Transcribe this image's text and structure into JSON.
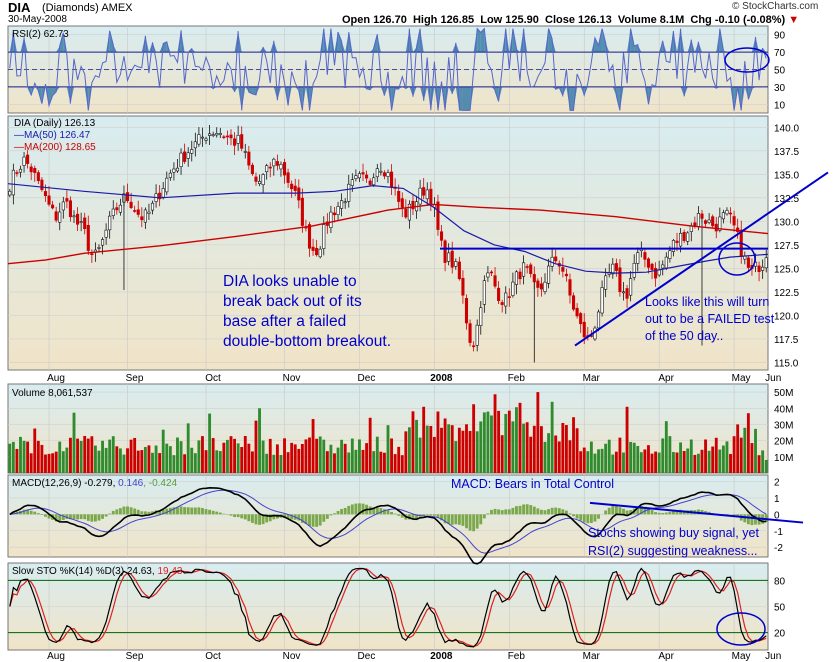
{
  "header": {
    "symbol": "DIA",
    "name": "(Diamonds)",
    "exchange": "AMEX",
    "date": "30-May-2008",
    "open": "Open 126.70",
    "high": "High 126.85",
    "low": "Low 125.90",
    "close": "Close 126.13",
    "volume": "Volume 8.1M",
    "chg": "Chg -0.10 (-0.08%)",
    "chg_arrow": "▼",
    "watermark": "© StockCharts.com"
  },
  "colors": {
    "up": "#2e8b2e",
    "down": "#cc0000",
    "ma50": "#1a1aaa",
    "ma200": "#cc0000",
    "annotation": "#0000cc",
    "bg_top": "#d8ecf0",
    "bg_bottom": "#f0e4c8"
  },
  "chart_data": [
    {
      "type": "line",
      "panel": "rsi",
      "title": "RSI(2) 62.73",
      "y_ticks": [
        90,
        70,
        50,
        30,
        10
      ],
      "levels": [
        70,
        30
      ],
      "ylim": [
        0,
        100
      ]
    },
    {
      "type": "candlestick",
      "panel": "price",
      "title": "DIA (Daily) 126.13",
      "legend": [
        {
          "name": "MA(50) 126.47",
          "color": "#1a1aaa"
        },
        {
          "name": "MA(200) 128.65",
          "color": "#cc0000"
        }
      ],
      "y_ticks": [
        140.0,
        137.5,
        135.0,
        132.5,
        130.0,
        127.5,
        125.0,
        122.5,
        120.0,
        117.5,
        115.0
      ],
      "ylim": [
        114.2,
        141.2
      ],
      "x_ticks": [
        "Aug",
        "Sep",
        "Oct",
        "Nov",
        "Dec",
        "2008",
        "Feb",
        "Mar",
        "Apr",
        "May",
        "Jun"
      ],
      "close_path": [
        134.0,
        135.0,
        135.8,
        136.5,
        136.0,
        135.2,
        134.0,
        133.2,
        132.0,
        131.0,
        130.5,
        131.5,
        132.0,
        131.2,
        130.0,
        129.5,
        128.8,
        127.2,
        126.0,
        126.8,
        128.0,
        129.5,
        130.5,
        131.5,
        132.2,
        132.6,
        132.0,
        131.2,
        130.5,
        130.5,
        131.0,
        132.0,
        133.0,
        134.0,
        134.8,
        135.6,
        136.2,
        136.8,
        137.4,
        137.9,
        138.3,
        138.8,
        139.3,
        139.5,
        139.6,
        139.5,
        139.2,
        138.8,
        138.5,
        138.5,
        137.5,
        136.0,
        134.8,
        134.0,
        134.5,
        135.2,
        136.0,
        136.5,
        136.0,
        135.0,
        134.0,
        133.0,
        131.5,
        129.5,
        128.0,
        127.0,
        127.0,
        128.5,
        130.0,
        131.0,
        131.5,
        132.0,
        132.8,
        133.6,
        134.2,
        134.5,
        134.3,
        134.0,
        135.5,
        136.2,
        135.8,
        135.0,
        133.8,
        132.5,
        131.2,
        130.8,
        131.5,
        132.2,
        133.0,
        133.6,
        133.0,
        131.0,
        128.0,
        126.5,
        126.0,
        125.5,
        124.5,
        122.0,
        119.0,
        116.5,
        118.5,
        122.0,
        124.0,
        124.5,
        123.0,
        122.0,
        121.5,
        122.5,
        123.5,
        124.5,
        125.0,
        124.5,
        123.0,
        122.5,
        123.0,
        124.5,
        125.5,
        126.0,
        125.5,
        124.0,
        122.0,
        120.5,
        119.0,
        118.0,
        117.2,
        118.5,
        120.5,
        122.5,
        124.0,
        125.0,
        124.0,
        122.5,
        122.0,
        124.0,
        126.0,
        126.5,
        126.0,
        125.5,
        124.5,
        124.5,
        125.5,
        126.5,
        127.5,
        128.0,
        128.5,
        129.0,
        129.5,
        130.2,
        130.8,
        130.2,
        129.8,
        129.5,
        130.0,
        130.5,
        130.5,
        129.5,
        128.0,
        126.5,
        125.0,
        124.6,
        125.2,
        125.6,
        126.1
      ],
      "ma50_path": [
        [
          0,
          134.0
        ],
        [
          0.1,
          133.2
        ],
        [
          0.2,
          132.5
        ],
        [
          0.3,
          133.0
        ],
        [
          0.38,
          133.0
        ],
        [
          0.43,
          133.2
        ],
        [
          0.48,
          133.8
        ],
        [
          0.52,
          133.5
        ],
        [
          0.56,
          131.5
        ],
        [
          0.6,
          129.0
        ],
        [
          0.64,
          127.5
        ],
        [
          0.68,
          126.8
        ],
        [
          0.72,
          125.5
        ],
        [
          0.76,
          124.7
        ],
        [
          0.8,
          124.5
        ],
        [
          0.84,
          124.6
        ],
        [
          0.88,
          125.2
        ],
        [
          0.92,
          125.8
        ],
        [
          0.95,
          126.2
        ],
        [
          1.0,
          126.5
        ]
      ],
      "ma200_path": [
        [
          0,
          125.5
        ],
        [
          0.05,
          125.9
        ],
        [
          0.1,
          126.6
        ],
        [
          0.2,
          127.4
        ],
        [
          0.3,
          128.4
        ],
        [
          0.4,
          129.5
        ],
        [
          0.5,
          131.2
        ],
        [
          0.56,
          131.8
        ],
        [
          0.62,
          131.5
        ],
        [
          0.7,
          131.2
        ],
        [
          0.8,
          130.5
        ],
        [
          0.9,
          129.5
        ],
        [
          1.0,
          128.7
        ]
      ],
      "annotations": [
        "DIA looks unable to",
        "break back out of its",
        "base after a failed",
        "double-bottom breakout.",
        "Looks like this will turn",
        "out to be a FAILED test",
        "of the 50 day.."
      ]
    },
    {
      "type": "bar",
      "panel": "volume",
      "title": "Volume 8,061,537",
      "y_ticks": [
        "50M",
        "40M",
        "30M",
        "20M",
        "10M"
      ],
      "ylim": [
        0,
        55
      ]
    },
    {
      "type": "line",
      "panel": "macd",
      "title": "MACD(12,26,9) -0.279, 0.146, -0.424",
      "title_parts": [
        "MACD(12,26,9) -0.279, ",
        "0.146",
        ", -0.424"
      ],
      "y_ticks": [
        2,
        1,
        0,
        -1,
        -2
      ],
      "ylim": [
        -2.6,
        2.4
      ],
      "annotation": "MACD: Bears in Total Control"
    },
    {
      "type": "line",
      "panel": "stochastic",
      "title": "Slow STO %K(14) %D(3) 24.63, 19.43",
      "title_parts": [
        "Slow STO %K(14) %D(3) 24.63, ",
        "19.43"
      ],
      "y_ticks": [
        80,
        50,
        20
      ],
      "levels": [
        80,
        20
      ],
      "ylim": [
        0,
        100
      ],
      "annotations": [
        "Stochs showing buy signal, yet",
        "RSI(2) suggesting weakness..."
      ],
      "x_ticks": [
        "Aug",
        "Sep",
        "Oct",
        "Nov",
        "Dec",
        "2008",
        "Feb",
        "Mar",
        "Apr",
        "May",
        "Jun"
      ]
    }
  ]
}
